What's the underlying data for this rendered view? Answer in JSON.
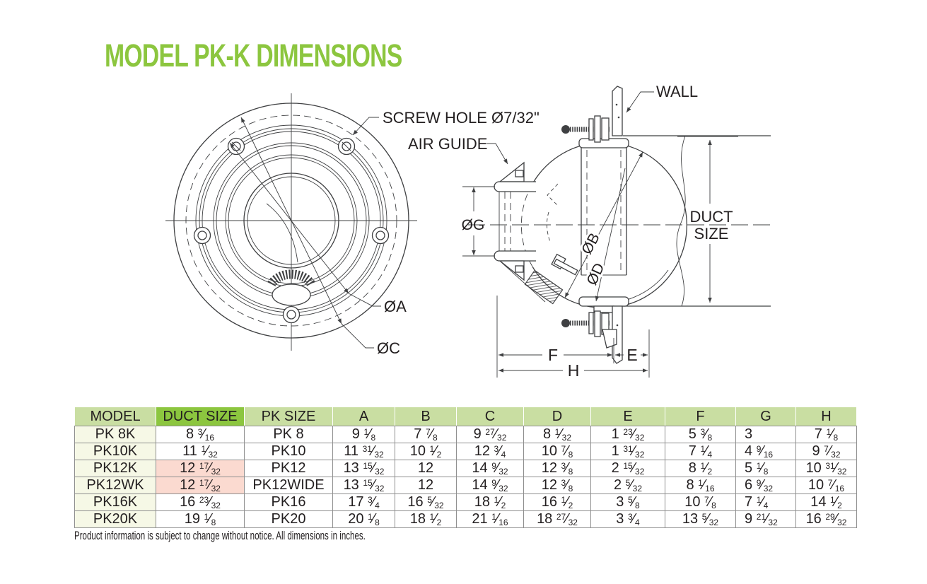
{
  "page": {
    "title": "MODEL PK-K DIMENSIONS",
    "footnote": "Product information is subject to change without notice. All dimensions in inches."
  },
  "colors": {
    "accent_green": "#8CC63F",
    "header_green": "#C9DEA2",
    "model_column": "#F6F8E6",
    "highlight_pink": "#FBDAD0",
    "line": "#3F4042",
    "text": "#231F20"
  },
  "front_view": {
    "labels": {
      "screw_hole": "SCREW HOLE Ø7/32\"",
      "dia_a": "ØA",
      "dia_c": "ØC"
    }
  },
  "side_view": {
    "labels": {
      "wall": "WALL",
      "air_guide": "AIR GUIDE",
      "dia_g": "ØG",
      "dia_b": "ØB",
      "dia_d": "ØD",
      "duct_line1": "DUCT",
      "duct_line2": "SIZE",
      "dim_f": "F",
      "dim_e": "E",
      "dim_h": "H"
    }
  },
  "table": {
    "headers": [
      "MODEL",
      "DUCT SIZE",
      "PK SIZE",
      "A",
      "B",
      "C",
      "D",
      "E",
      "F",
      "G",
      "H"
    ],
    "highlighted_header": "DUCT SIZE",
    "rows": [
      [
        "PK 8K",
        "8 3/16",
        "PK 8",
        "9 1/8",
        "7 7/8",
        "9 27/32",
        "8 1/32",
        "1 23/32",
        "5 3/8",
        "3",
        "7 1/8"
      ],
      [
        "PK10K",
        "11 1/32",
        "PK10",
        "11 31/32",
        "10 1/2",
        "12 3/4",
        "10 7/8",
        "1 31/32",
        "7 1/4",
        "4 9/16",
        "9 7/32"
      ],
      [
        "PK12K",
        "12 17/32",
        "PK12",
        "13 15/32",
        "12",
        "14 9/32",
        "12 3/8",
        "2 15/32",
        "8 1/2",
        "5 1/8",
        "10 31/32"
      ],
      [
        "PK12WK",
        "12 17/32",
        "PK12WIDE",
        "13 15/32",
        "12",
        "14 9/32",
        "12 3/8",
        "2 5/32",
        "8 1/16",
        "6 9/32",
        "10 7/16"
      ],
      [
        "PK16K",
        "16 23/32",
        "PK16",
        "17 3/4",
        "16 5/32",
        "18 1/2",
        "16 1/2",
        "3 5/8",
        "10 7/8",
        "7 1/4",
        "14 1/2"
      ],
      [
        "PK20K",
        "19 1/8",
        "PK20",
        "20 1/8",
        "18 1/2",
        "21 1/16",
        "18 27/32",
        "3 3/4",
        "13 5/32",
        "9 21/32",
        "16 29/32"
      ]
    ],
    "pink_duct_rows": [
      2,
      3
    ]
  }
}
